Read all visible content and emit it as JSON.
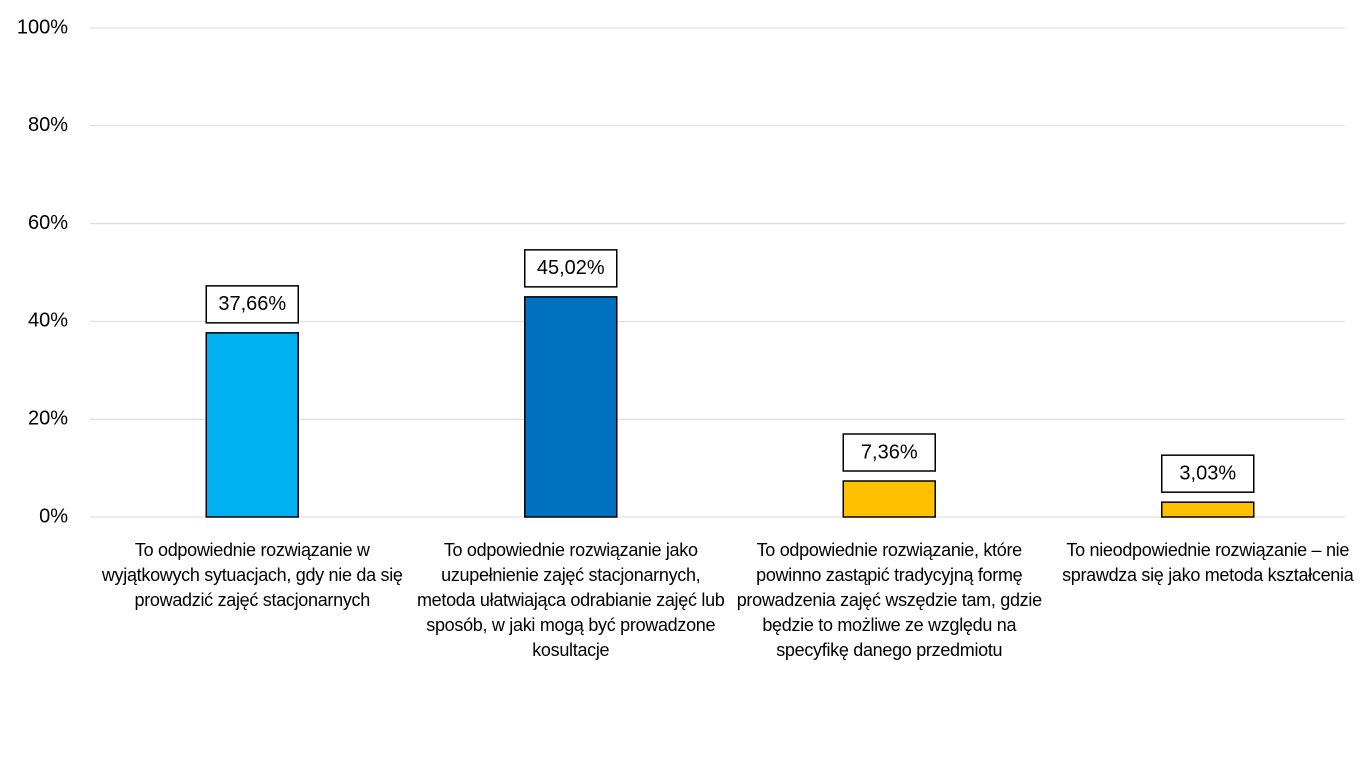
{
  "chart_data": {
    "type": "bar",
    "categories": [
      "To odpowiednie rozwiązanie w wyjątkowych sytuacjach, gdy nie da się prowadzić zajęć stacjonarnych",
      "To odpowiednie rozwiązanie jako uzupełnienie zajęć stacjonarnych, metoda ułatwiająca odrabianie zajęć lub sposób, w jaki mogą być prowadzone kosultacje",
      "To odpowiednie rozwiązanie, które powinno zastąpić tradycyjną formę prowadzenia zajęć wszędzie tam, gdzie będzie to możliwe ze względu na specyfikę danego przedmiotu",
      "To nieodpowiednie rozwiązanie – nie sprawdza się jako metoda kształcenia"
    ],
    "values": [
      37.66,
      45.02,
      7.36,
      3.03
    ],
    "value_labels": [
      "37,66%",
      "45,02%",
      "7,36%",
      "3,03%"
    ],
    "colors": [
      "#00b0f0",
      "#0070c0",
      "#ffc000",
      "#ffc000"
    ],
    "ylim": [
      0,
      100
    ],
    "yticks": [
      {
        "value": 0,
        "label": "0%"
      },
      {
        "value": 20,
        "label": "20%"
      },
      {
        "value": 40,
        "label": "40%"
      },
      {
        "value": 60,
        "label": "60%"
      },
      {
        "value": 80,
        "label": "80%"
      },
      {
        "value": 100,
        "label": "100%"
      }
    ],
    "grid": true
  }
}
